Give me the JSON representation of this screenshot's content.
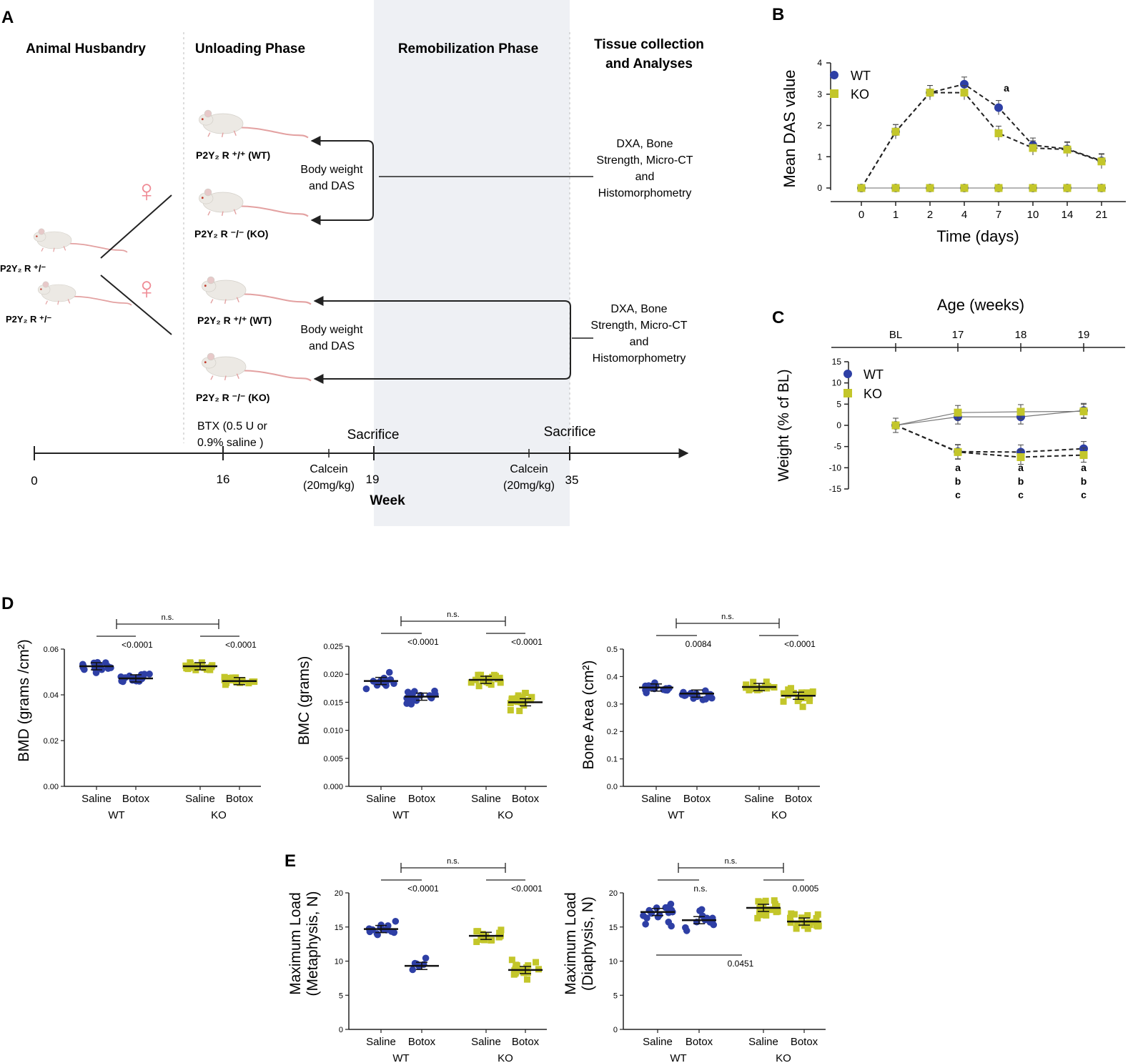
{
  "colors": {
    "wt": "#2e3fa5",
    "ko": "#c3c62a",
    "mouse_body": "#ece9e4",
    "mouse_tail": "#e3a1a1",
    "female_symbol": "#ef8a94",
    "shade": "#eef0f4"
  },
  "panel_letters": {
    "a": "A",
    "b": "B",
    "c": "C",
    "d": "D",
    "e": "E"
  },
  "panelA": {
    "phases": {
      "husbandry": "Animal Husbandry",
      "unloading": "Unloading Phase",
      "remobilization": "Remobilization Phase",
      "tissue_line1": "Tissue collection",
      "tissue_line2": "and Analyses"
    },
    "parent_label": "P2Y₂ R ⁺/⁻",
    "female_symbol": "♀",
    "mice": {
      "wt": "P2Y₂ R ⁺/⁺ (WT)",
      "ko": "P2Y₂ R ⁻/⁻ (KO)"
    },
    "measure_line1": "Body weight",
    "measure_line2": "and DAS",
    "analyses": [
      "DXA, Bone",
      "Strength, Micro-CT",
      "and",
      "Histomorphometry"
    ],
    "btx_line1": "BTX (0.5 U or",
    "btx_line2": "0.9% saline )",
    "sacrifice": "Sacrifice",
    "calcein_line1": "Calcein",
    "calcein_line2": "(20mg/kg)",
    "timeline_ticks": [
      "0",
      "16",
      "19",
      "35"
    ],
    "week_label": "Week"
  },
  "chart_data": [
    {
      "id": "B",
      "type": "line",
      "title": "",
      "xlabel": "Time (days)",
      "ylabel": "Mean DAS value",
      "categories": [
        "0",
        "1",
        "2",
        "4",
        "7",
        "10",
        "14",
        "21"
      ],
      "ylim": [
        0,
        4
      ],
      "yticks": [
        "0",
        "1",
        "2",
        "3",
        "4"
      ],
      "legend": [
        "WT",
        "KO"
      ],
      "series": [
        {
          "name": "WT Botox",
          "values": [
            0,
            1.8,
            3.05,
            3.32,
            2.57,
            1.37,
            1.25,
            0.87
          ]
        },
        {
          "name": "KO Botox",
          "values": [
            0,
            1.8,
            3.05,
            3.05,
            1.75,
            1.28,
            1.23,
            0.85
          ]
        },
        {
          "name": "WT Saline",
          "values": [
            0,
            0,
            0,
            0,
            0,
            0,
            0,
            0
          ]
        },
        {
          "name": "KO Saline",
          "values": [
            0,
            0,
            0,
            0,
            0,
            0,
            0,
            0
          ]
        }
      ],
      "annotations": [
        {
          "category": "7",
          "text": "a"
        }
      ]
    },
    {
      "id": "C",
      "type": "line",
      "title": "Age (weeks)",
      "xlabel": "",
      "ylabel": "Weight (% cf BL)",
      "categories": [
        "BL",
        "17",
        "18",
        "19"
      ],
      "ylim": [
        -15,
        15
      ],
      "yticks": [
        "15",
        "10",
        "5",
        "0",
        "-5",
        "-10",
        "-15"
      ],
      "legend": [
        "WT",
        "KO"
      ],
      "series": [
        {
          "name": "WT Saline",
          "values": [
            0,
            2,
            2,
            3.5
          ]
        },
        {
          "name": "KO Saline",
          "values": [
            0,
            3,
            3.2,
            3.3
          ]
        },
        {
          "name": "WT Botox",
          "values": [
            0,
            -6.2,
            -6.3,
            -5.5
          ]
        },
        {
          "name": "KO Botox",
          "values": [
            0,
            -6.3,
            -7.5,
            -7
          ]
        }
      ],
      "annotations": [
        "a",
        "b",
        "c"
      ]
    },
    {
      "id": "D1",
      "type": "scatter",
      "ylabel": "BMD (grams /cm²)",
      "ylim": [
        0,
        0.06
      ],
      "yticks": [
        "0.00",
        "0.02",
        "0.04",
        "0.06"
      ],
      "groups": [
        "Saline",
        "Botox",
        "Saline",
        "Botox"
      ],
      "genotypes": [
        "WT",
        "KO"
      ],
      "means": [
        0.0525,
        0.0472,
        0.0525,
        0.046
      ],
      "spread": [
        0.0022,
        0.0022,
        0.002,
        0.0016
      ],
      "counts": [
        16,
        16,
        18,
        18
      ],
      "brackets": {
        "top": "n.s.",
        "wt": "<0.0001",
        "ko": "<0.0001"
      }
    },
    {
      "id": "D2",
      "type": "scatter",
      "ylabel": "BMC (grams)",
      "ylim": [
        0,
        0.025
      ],
      "yticks": [
        "0.000",
        "0.005",
        "0.010",
        "0.015",
        "0.020",
        "0.025"
      ],
      "groups": [
        "Saline",
        "Botox",
        "Saline",
        "Botox"
      ],
      "genotypes": [
        "WT",
        "KO"
      ],
      "means": [
        0.0188,
        0.016,
        0.019,
        0.015
      ],
      "spread": [
        0.0015,
        0.0012,
        0.0012,
        0.0018
      ],
      "counts": [
        16,
        16,
        18,
        20
      ],
      "brackets": {
        "top": "n.s.",
        "wt": "<0.0001",
        "ko": "<0.0001"
      }
    },
    {
      "id": "D3",
      "type": "scatter",
      "ylabel": "Bone Area (cm²)",
      "ylim": [
        0,
        0.5
      ],
      "yticks": [
        "0.0",
        "0.1",
        "0.2",
        "0.3",
        "0.4",
        "0.5"
      ],
      "groups": [
        "Saline",
        "Botox",
        "Saline",
        "Botox"
      ],
      "genotypes": [
        "WT",
        "KO"
      ],
      "means": [
        0.36,
        0.338,
        0.362,
        0.33
      ],
      "spread": [
        0.02,
        0.02,
        0.015,
        0.03
      ],
      "counts": [
        16,
        16,
        18,
        20
      ],
      "brackets": {
        "top": "n.s.",
        "wt": "0.0084",
        "ko": "<0.0001"
      }
    },
    {
      "id": "E1",
      "type": "scatter",
      "ylabel": "Maximum Load (Metaphysis, N)",
      "ylabel_lines": [
        "Maximum Load",
        "(Metaphysis, N)"
      ],
      "ylim": [
        0,
        20
      ],
      "yticks": [
        "0",
        "5",
        "10",
        "15",
        "20"
      ],
      "groups": [
        "Saline",
        "Botox",
        "Saline",
        "Botox"
      ],
      "genotypes": [
        "WT",
        "KO"
      ],
      "means": [
        14.7,
        9.3,
        13.7,
        8.7
      ],
      "spread": [
        0.9,
        1.0,
        1.0,
        1.2
      ],
      "counts": [
        14,
        6,
        16,
        16
      ],
      "brackets": {
        "top": "n.s.",
        "wt": "<0.0001",
        "ko": "<0.0001"
      }
    },
    {
      "id": "E2",
      "type": "scatter",
      "ylabel": "Maximum Load (Diaphysis, N)",
      "ylabel_lines": [
        "Maximum Load",
        "(Diaphysis, N)"
      ],
      "ylim": [
        0,
        20
      ],
      "yticks": [
        "0",
        "5",
        "10",
        "15",
        "20"
      ],
      "groups": [
        "Saline",
        "Botox",
        "Saline",
        "Botox"
      ],
      "genotypes": [
        "WT",
        "KO"
      ],
      "means": [
        17.2,
        16,
        17.8,
        15.8
      ],
      "spread": [
        1.5,
        1.7,
        1.1,
        1.6
      ],
      "counts": [
        16,
        13,
        18,
        20
      ],
      "brackets": {
        "top": "n.s.",
        "wt": "n.s.",
        "ko": "0.0005",
        "bottom": "0.0451"
      }
    }
  ]
}
